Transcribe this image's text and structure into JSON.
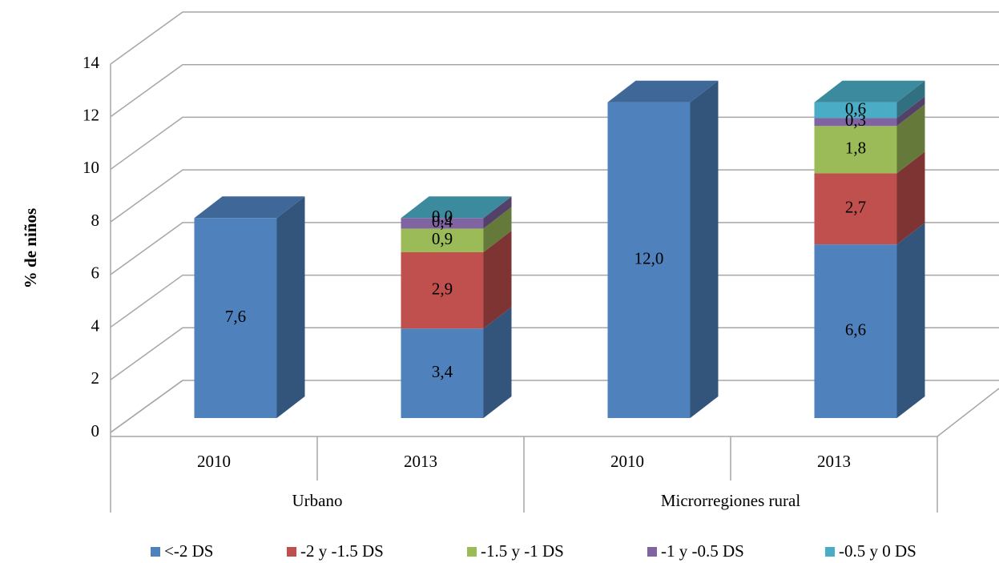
{
  "chart_data": {
    "type": "bar3d_stacked",
    "y_label": "% de niños",
    "categories": [
      "2010",
      "2013",
      "2010",
      "2013"
    ],
    "groups": [
      "Urbano",
      "Microrregiones rural"
    ],
    "ylim": [
      0,
      14
    ],
    "yticks": [
      0,
      2,
      4,
      6,
      8,
      10,
      12,
      14
    ],
    "grid": true,
    "legend": "bottom",
    "series": [
      {
        "name": "<-2 DS",
        "color": "#4f81bd",
        "values": [
          7.6,
          3.4,
          12.0,
          6.6
        ],
        "value_labels": [
          "7,6",
          "3,4",
          "12,0",
          "6,6"
        ]
      },
      {
        "name": "-2 y -1.5  DS",
        "color": "#c0504d",
        "values": [
          null,
          2.9,
          null,
          2.7
        ],
        "value_labels": [
          null,
          "2,9",
          null,
          "2,7"
        ]
      },
      {
        "name": "-1.5 y -1  DS",
        "color": "#9bbb59",
        "values": [
          null,
          0.9,
          null,
          1.8
        ],
        "value_labels": [
          null,
          "0,9",
          null,
          "1,8"
        ]
      },
      {
        "name": "-1 y -0.5 DS",
        "color": "#8064a2",
        "values": [
          null,
          0.4,
          null,
          0.3
        ],
        "value_labels": [
          null,
          "0,4",
          null,
          "0,3"
        ]
      },
      {
        "name": "-0.5 y 0 DS",
        "color": "#4bacc6",
        "values": [
          null,
          0.0,
          null,
          0.6
        ],
        "value_labels": [
          null,
          "0,0",
          null,
          "0,6"
        ]
      }
    ]
  }
}
